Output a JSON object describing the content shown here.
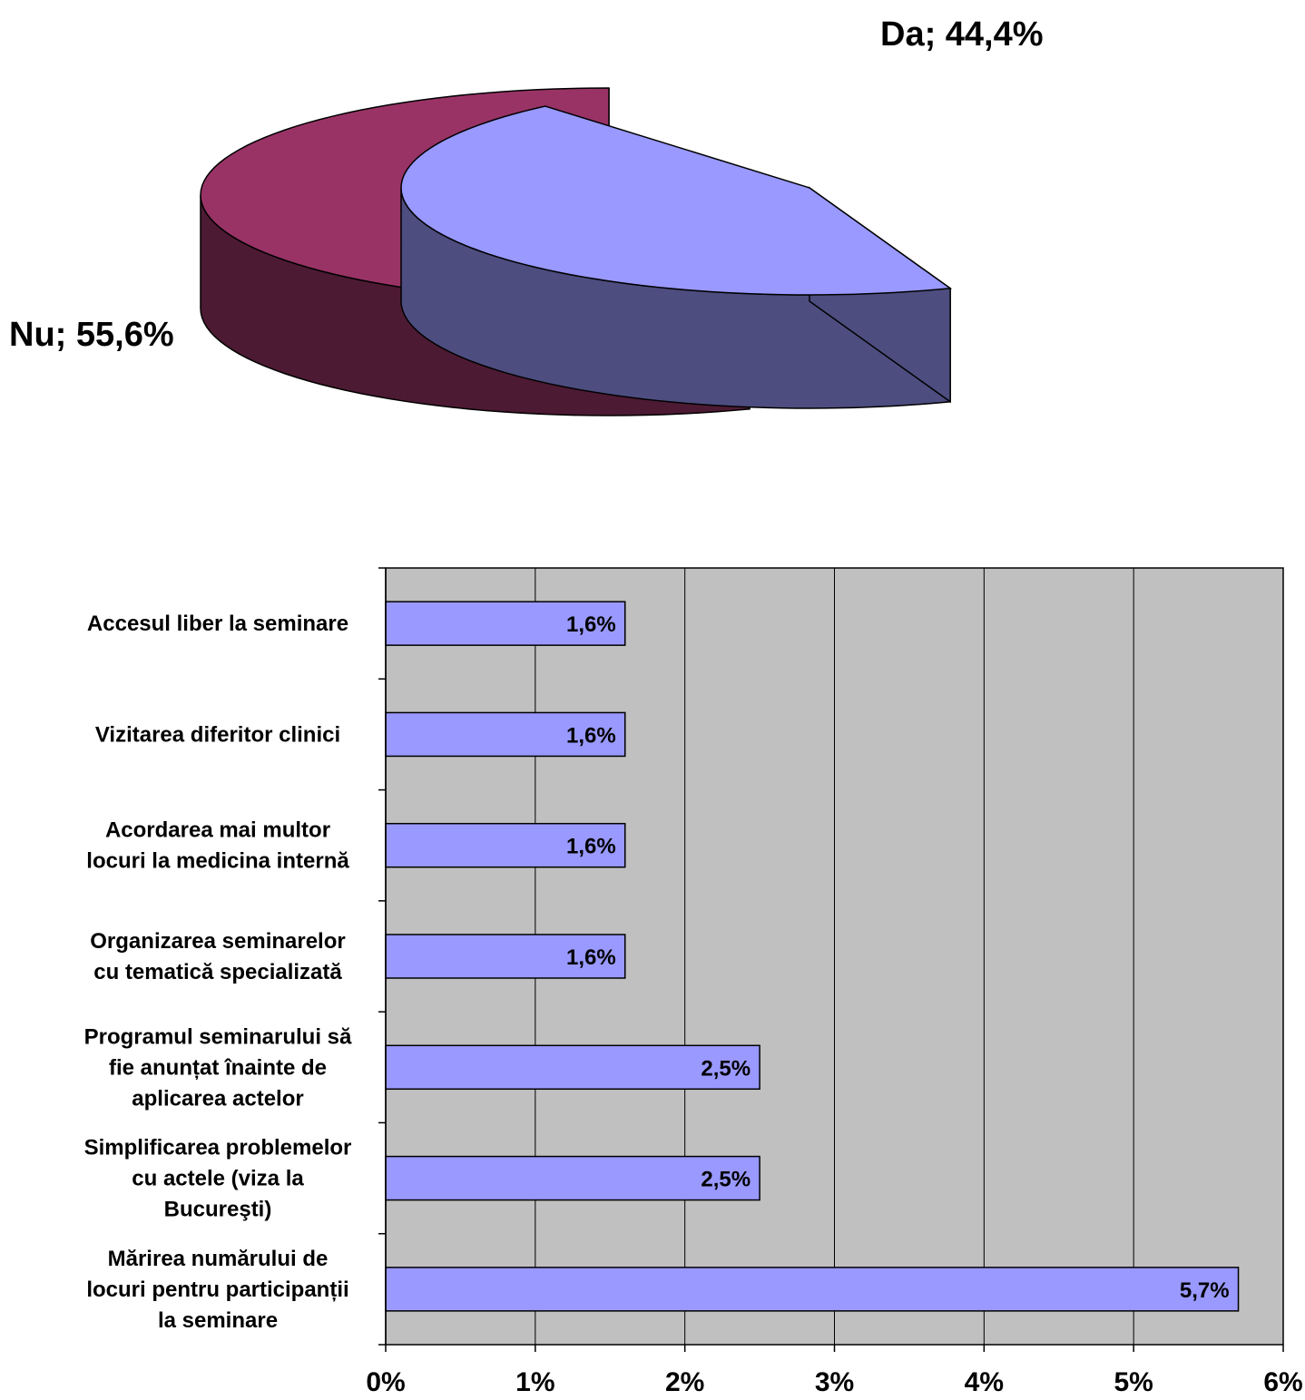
{
  "chart_data": [
    {
      "type": "pie",
      "slices": [
        {
          "label": "Nu; 55,6%",
          "category": "Nu",
          "value": 55.6,
          "color": "#993366",
          "side_color": "#4d1a33"
        },
        {
          "label": "Da; 44,4%",
          "category": "Da",
          "value": 44.4,
          "color": "#9999ff",
          "side_color": "#4d4d80"
        }
      ],
      "style": "3D exploded"
    },
    {
      "type": "bar",
      "orientation": "horizontal",
      "categories": [
        "Accesul liber la seminare",
        "Vizitarea diferitor clinici",
        "Acordarea mai multor locuri la medicina internă",
        "Organizarea seminarelor cu tematică specializată",
        "Programul seminarului să fie anunțat înainte de aplicarea actelor",
        "Simplificarea problemelor cu actele (viza la Bucureşti)",
        "Mărirea numărului de locuri pentru participanții la seminare"
      ],
      "category_lines": [
        [
          "Accesul liber la seminare"
        ],
        [
          "Vizitarea diferitor clinici"
        ],
        [
          "Acordarea mai multor",
          "locuri la medicina internă"
        ],
        [
          "Organizarea seminarelor",
          "cu tematică specializată"
        ],
        [
          "Programul seminarului să",
          "fie anunțat înainte de",
          "aplicarea actelor"
        ],
        [
          "Simplificarea problemelor",
          "cu actele (viza la",
          "Bucureşti)"
        ],
        [
          "Mărirea numărului de",
          "locuri pentru participanții",
          "la seminare"
        ]
      ],
      "values": [
        1.6,
        1.6,
        1.6,
        1.6,
        2.5,
        2.5,
        5.7
      ],
      "data_labels": [
        "1,6%",
        "1,6%",
        "1,6%",
        "1,6%",
        "2,5%",
        "2,5%",
        "5,7%"
      ],
      "x_ticks": [
        "0%",
        "1%",
        "2%",
        "3%",
        "4%",
        "5%",
        "6%"
      ],
      "xlim": [
        0,
        6
      ],
      "grid": true,
      "bar_color": "#9999ff",
      "plot_bg": "#c0c0c0"
    }
  ]
}
